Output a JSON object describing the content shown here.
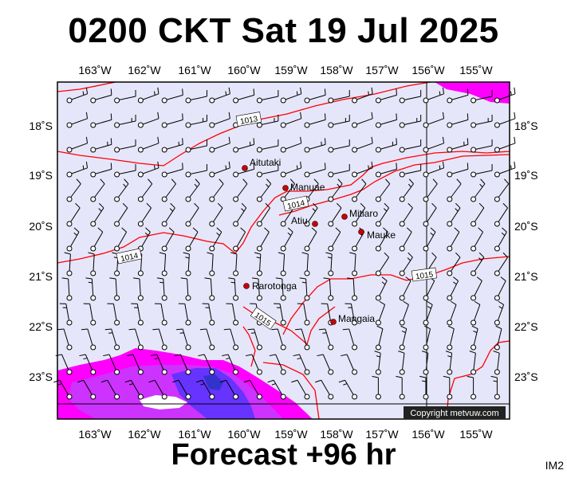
{
  "title": "0200 CKT Sat 19 Jul 2025",
  "footer": "Forecast +96 hr",
  "corner_label": "IM2",
  "copyright": "Copyright metvuw.com",
  "colors": {
    "background": "#e6e6fa",
    "isobar": "#ff0000",
    "rain_light": "#ff00ff",
    "rain_mid": "#cc33ff",
    "rain_heavy": "#6633ff",
    "rain_max": "#3333cc"
  },
  "map": {
    "lon_labels": [
      "163˚W",
      "162˚W",
      "161˚W",
      "160˚W",
      "159˚W",
      "158˚W",
      "157˚W",
      "156˚W",
      "155˚W"
    ],
    "lat_labels": [
      "18˚S",
      "19˚S",
      "20˚S",
      "21˚S",
      "22˚S",
      "23˚S"
    ],
    "places": [
      {
        "name": "Aitutaki"
      },
      {
        "name": "Manuae"
      },
      {
        "name": "Atiu"
      },
      {
        "name": "Mitiaro"
      },
      {
        "name": "Mauke"
      },
      {
        "name": "Rarotonga"
      },
      {
        "name": "Mangaia"
      }
    ],
    "isobar_labels": [
      "1013",
      "1014",
      "1014",
      "1015",
      "1015"
    ]
  }
}
